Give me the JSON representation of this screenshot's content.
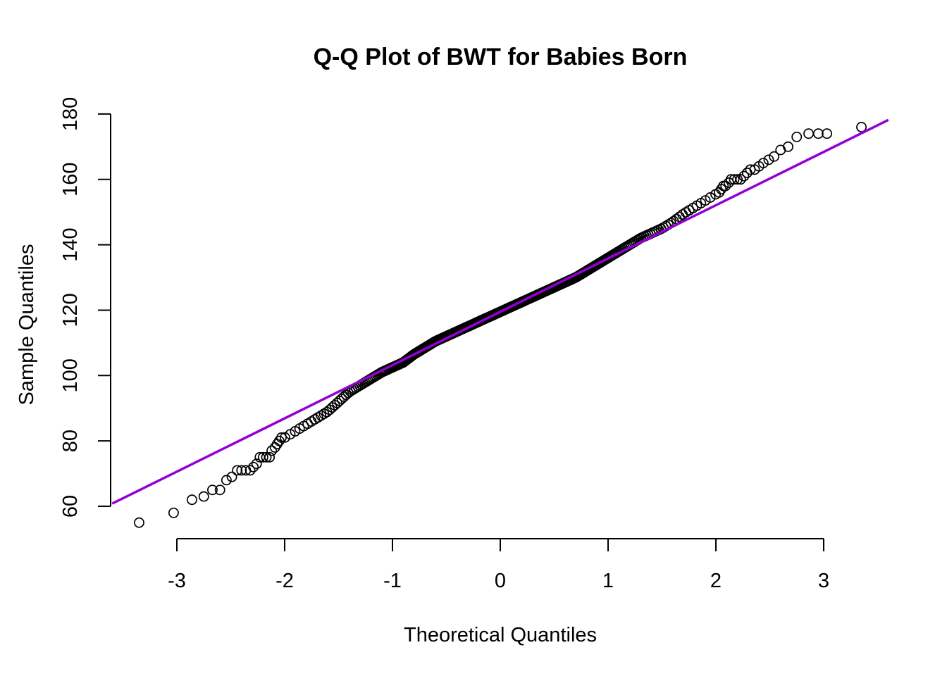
{
  "chart_data": {
    "type": "scatter",
    "title": "Q-Q Plot of BWT for Babies Born",
    "xlabel": "Theoretical Quantiles",
    "ylabel": "Sample Quantiles",
    "xlim": [
      -3.6,
      3.6
    ],
    "ylim": [
      50,
      180
    ],
    "x_ticks": [
      -3,
      -2,
      -1,
      0,
      1,
      2,
      3
    ],
    "y_ticks": [
      60,
      80,
      100,
      120,
      140,
      160,
      180
    ],
    "grid": false,
    "reference_line": {
      "intercept": 119.5,
      "slope": 16.3,
      "color": "#9400D3"
    },
    "point_color": "#000000",
    "tails": [
      [
        -3.35,
        55
      ],
      [
        -3.03,
        58
      ],
      [
        -2.86,
        62
      ],
      [
        -2.75,
        63
      ],
      [
        -2.67,
        65
      ],
      [
        -2.6,
        65
      ],
      [
        -2.54,
        68
      ],
      [
        -2.49,
        69
      ],
      [
        -2.44,
        71
      ],
      [
        -2.4,
        71
      ],
      [
        -2.36,
        71
      ],
      [
        -2.32,
        71
      ],
      [
        -2.29,
        72
      ],
      [
        -2.26,
        73
      ],
      [
        -2.23,
        75
      ],
      [
        -2.2,
        75
      ],
      [
        -2.17,
        75
      ],
      [
        -2.14,
        75
      ],
      [
        -2.12,
        77
      ],
      [
        -2.09,
        78
      ],
      [
        -2.07,
        79
      ],
      [
        -2.05,
        80
      ],
      [
        -2.03,
        81
      ],
      [
        2.03,
        156
      ],
      [
        2.05,
        157
      ],
      [
        2.07,
        158
      ],
      [
        2.09,
        158
      ],
      [
        2.12,
        159
      ],
      [
        2.14,
        160
      ],
      [
        2.17,
        160
      ],
      [
        2.2,
        160
      ],
      [
        2.23,
        160
      ],
      [
        2.26,
        161
      ],
      [
        2.29,
        162
      ],
      [
        2.32,
        163
      ],
      [
        2.36,
        163
      ],
      [
        2.4,
        164
      ],
      [
        2.44,
        165
      ],
      [
        2.49,
        166
      ],
      [
        2.54,
        167
      ],
      [
        2.6,
        169
      ],
      [
        2.67,
        170
      ],
      [
        2.75,
        173
      ],
      [
        2.86,
        174
      ],
      [
        2.95,
        174
      ],
      [
        3.03,
        174
      ],
      [
        3.35,
        176
      ]
    ],
    "body_curve": [
      [
        -2.0,
        81
      ],
      [
        -1.9,
        83
      ],
      [
        -1.8,
        85
      ],
      [
        -1.7,
        87
      ],
      [
        -1.6,
        89
      ],
      [
        -1.5,
        92
      ],
      [
        -1.4,
        95
      ],
      [
        -1.3,
        97
      ],
      [
        -1.2,
        99
      ],
      [
        -1.1,
        101
      ],
      [
        -1.0,
        102.5
      ],
      [
        -0.9,
        104
      ],
      [
        -0.8,
        106.5
      ],
      [
        -0.7,
        108.5
      ],
      [
        -0.6,
        110.5
      ],
      [
        -0.5,
        112
      ],
      [
        -0.4,
        113.5
      ],
      [
        -0.3,
        115
      ],
      [
        -0.2,
        116.5
      ],
      [
        -0.1,
        118
      ],
      [
        0.0,
        119.5
      ],
      [
        0.1,
        121
      ],
      [
        0.2,
        122.5
      ],
      [
        0.3,
        124
      ],
      [
        0.4,
        125.5
      ],
      [
        0.5,
        127
      ],
      [
        0.6,
        128.5
      ],
      [
        0.7,
        130
      ],
      [
        0.8,
        132
      ],
      [
        0.9,
        134
      ],
      [
        1.0,
        136
      ],
      [
        1.1,
        138
      ],
      [
        1.2,
        140
      ],
      [
        1.3,
        142
      ],
      [
        1.4,
        143.5
      ],
      [
        1.5,
        145
      ],
      [
        1.6,
        147
      ],
      [
        1.7,
        149.5
      ],
      [
        1.8,
        151.5
      ],
      [
        1.9,
        153.5
      ],
      [
        2.0,
        155.5
      ]
    ],
    "body_point_count": 340
  }
}
